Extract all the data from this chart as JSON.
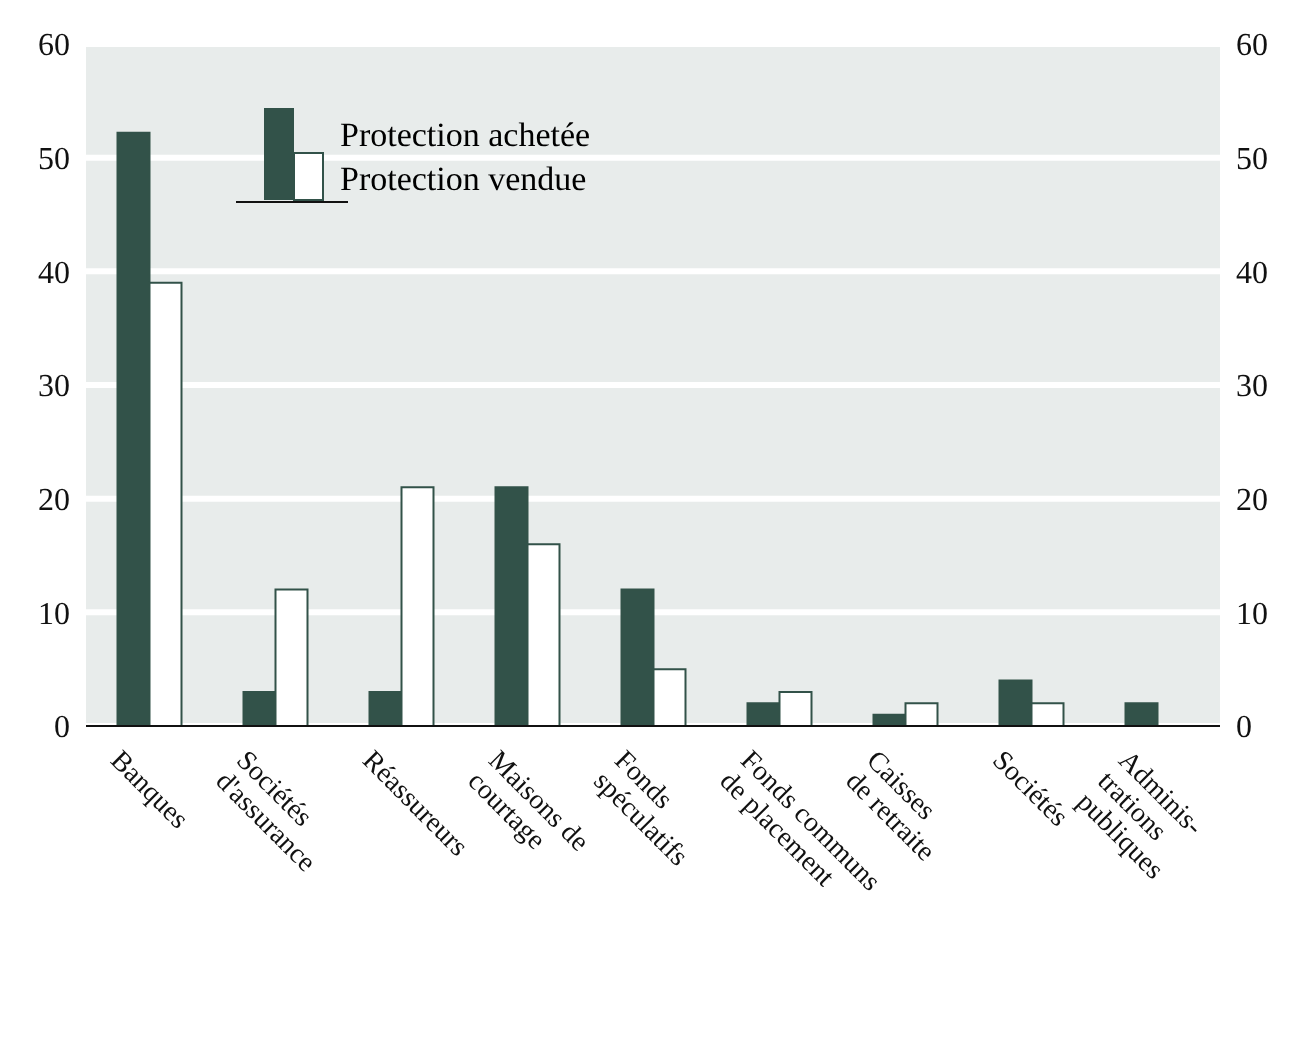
{
  "chart_data": {
    "type": "bar",
    "categories": [
      "Banques",
      "Sociétés\nd'assurance",
      "Réassureurs",
      "Maisons de\ncourtage",
      "Fonds\nspéculatifs",
      "Fonds communs\nde placement",
      "Caisses\nde retraite",
      "Sociétés",
      "Adminis-\ntrations\npubliques"
    ],
    "series": [
      {
        "name": "Protection achetée",
        "color": "#325249",
        "values": [
          52.2,
          3,
          3,
          21,
          12,
          2,
          1,
          4,
          2
        ]
      },
      {
        "name": "Protection vendue",
        "color": "#ffffff",
        "values": [
          39,
          12,
          21,
          16,
          5,
          3,
          2,
          2,
          null
        ]
      }
    ],
    "ylim": [
      0,
      60
    ],
    "yticks": [
      0,
      10,
      20,
      30,
      40,
      50,
      60
    ],
    "y2lim": [
      0,
      60
    ],
    "y2ticks": [
      0,
      10,
      20,
      30,
      40,
      50,
      60
    ],
    "grid": "y",
    "legend": "top left"
  }
}
